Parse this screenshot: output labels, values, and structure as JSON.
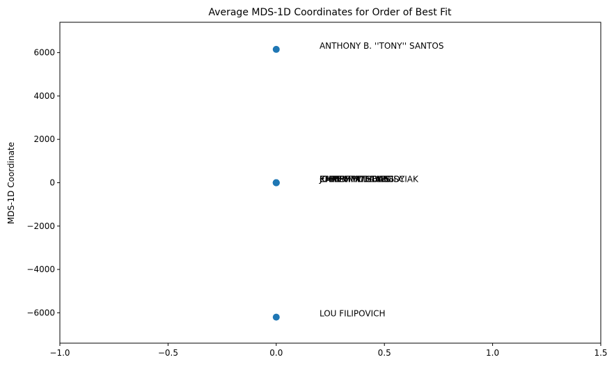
{
  "chart_data": {
    "type": "scatter",
    "title": "Average MDS-1D Coordinates for Order of Best Fit",
    "xlabel": "",
    "ylabel": "MDS-1D Coordinate",
    "xlim": [
      -1.0,
      1.5
    ],
    "ylim": [
      -7400,
      7400
    ],
    "grid": false,
    "x_ticks": [
      -1.0,
      -0.5,
      0.0,
      0.5,
      1.0,
      1.5
    ],
    "x_tick_labels": [
      "−1.0",
      "−0.5",
      "0.0",
      "0.5",
      "1.0",
      "1.5"
    ],
    "y_ticks": [
      -6000,
      -4000,
      -2000,
      0,
      2000,
      4000,
      6000
    ],
    "y_tick_labels": [
      "−6000",
      "−4000",
      "−2000",
      "0",
      "2000",
      "4000",
      "6000"
    ],
    "point_color": "#1f77b4",
    "label_offset_x": 0.2,
    "points": [
      {
        "label": "ANTHONY B. ''TONY'' SANTOS",
        "x": 0.0,
        "y": 6150
      },
      {
        "label": "JOHN M. WILDASS",
        "x": 0.0,
        "y": 0
      },
      {
        "label": "KAREN M. DAVIS",
        "x": 0.0,
        "y": 0
      },
      {
        "label": "CHRIS MATHEWS",
        "x": 0.0,
        "y": 0
      },
      {
        "label": "EMMETT D. CASSIDY",
        "x": 0.0,
        "y": 0
      },
      {
        "label": "JOSEPH M. STAROSCIAK",
        "x": 0.0,
        "y": 0
      },
      {
        "label": "LOU FILIPOVICH",
        "x": 0.0,
        "y": -6200
      }
    ]
  }
}
